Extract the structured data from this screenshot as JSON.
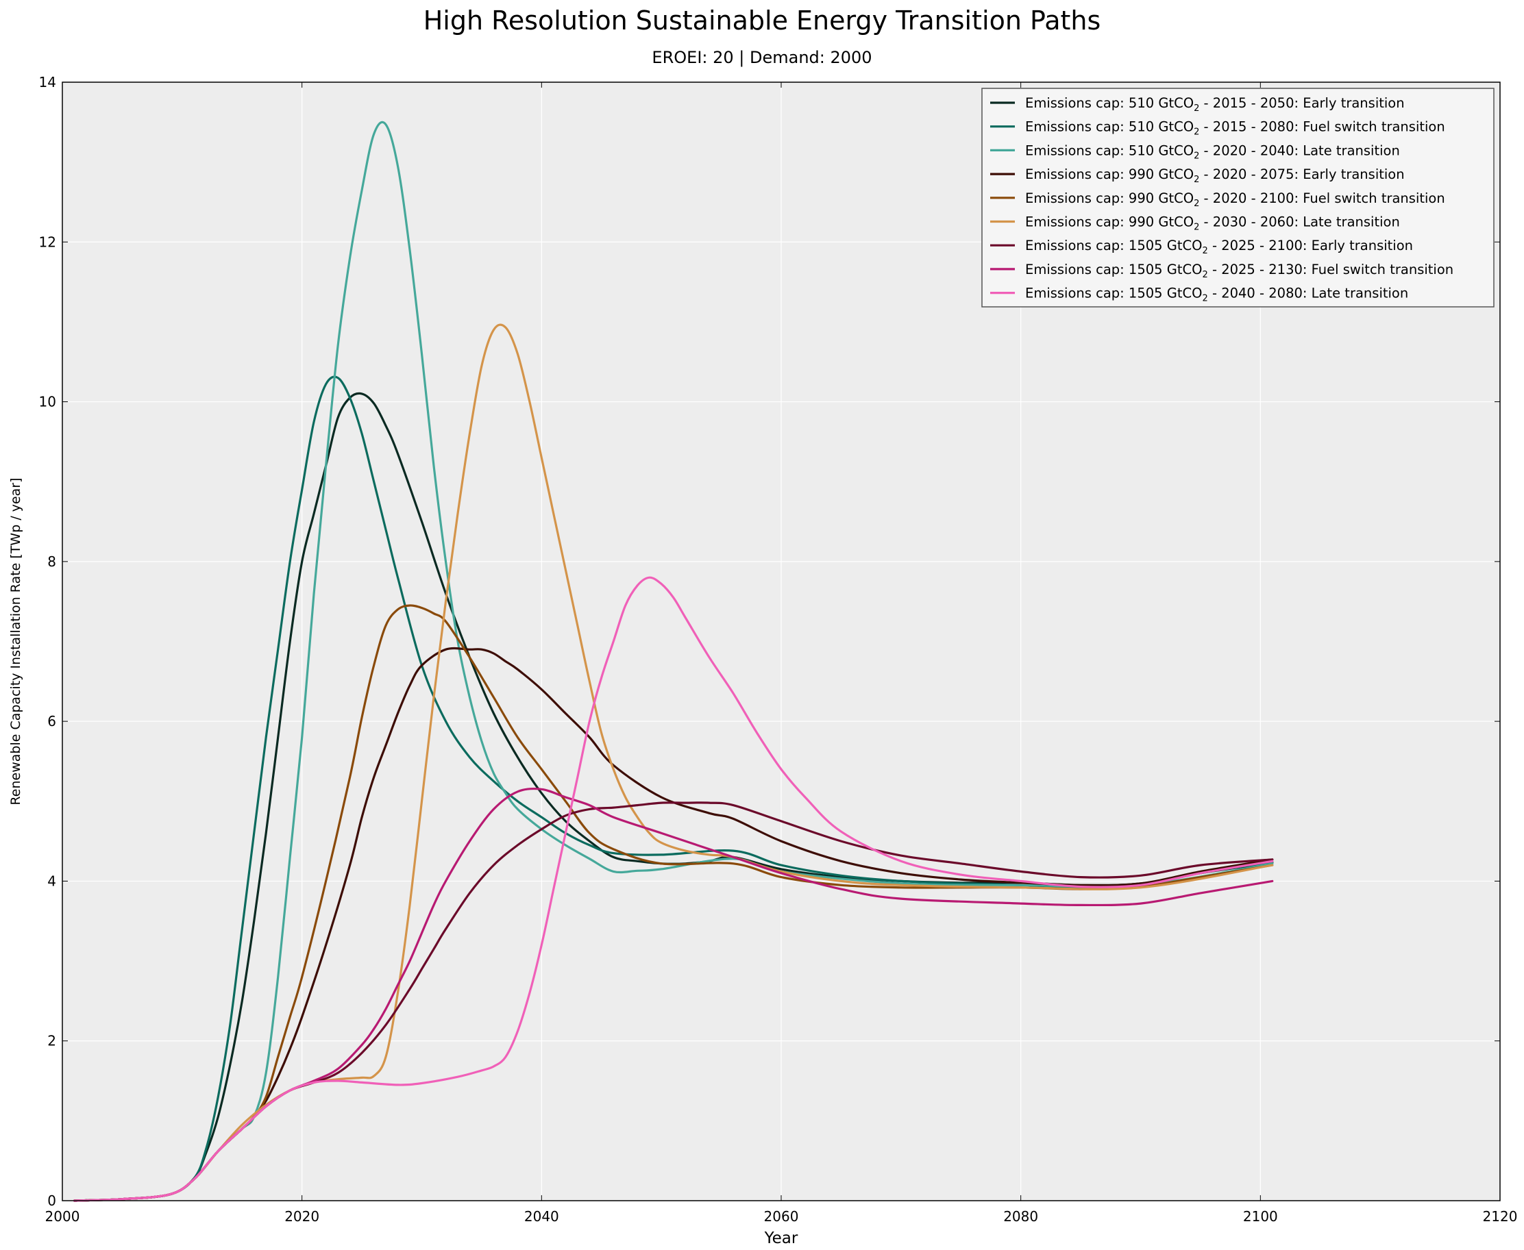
{
  "chart_data": {
    "type": "line",
    "title": "High Resolution Sustainable Energy Transition Paths",
    "subtitle": "EROEI: 20 | Demand: 2000",
    "xlabel": "Year",
    "ylabel": "Renewable Capacity Installation Rate [TWp / year]",
    "xlim": [
      2000,
      2120
    ],
    "ylim": [
      0,
      14
    ],
    "xticks": [
      2000,
      2020,
      2040,
      2060,
      2080,
      2100,
      2120
    ],
    "yticks": [
      0,
      2,
      4,
      6,
      8,
      10,
      12,
      14
    ],
    "grid": true,
    "legend_position": "top-right",
    "series": [
      {
        "name": "Emissions cap: 510 GtCO2 - 2015 - 2050: Early transition",
        "color": "#0a2a22",
        "x": [
          2001,
          2005,
          2009,
          2011,
          2012,
          2013,
          2014,
          2015,
          2016,
          2017,
          2018,
          2019,
          2020,
          2021,
          2022,
          2023,
          2024,
          2025,
          2026,
          2027,
          2028,
          2030,
          2032,
          2034,
          2036,
          2038,
          2040,
          2042,
          2044,
          2046,
          2048,
          2050,
          2052,
          2054,
          2056,
          2060,
          2065,
          2070,
          2075,
          2080,
          2085,
          2090,
          2095,
          2101
        ],
        "y": [
          0,
          0.02,
          0.08,
          0.28,
          0.6,
          1.05,
          1.7,
          2.5,
          3.5,
          4.6,
          5.8,
          7.0,
          8.0,
          8.6,
          9.2,
          9.8,
          10.05,
          10.1,
          9.98,
          9.7,
          9.35,
          8.5,
          7.6,
          6.8,
          6.1,
          5.55,
          5.1,
          4.75,
          4.5,
          4.3,
          4.25,
          4.22,
          4.22,
          4.25,
          4.3,
          4.15,
          4.05,
          4.0,
          3.98,
          3.98,
          3.95,
          3.97,
          4.1,
          4.23
        ]
      },
      {
        "name": "Emissions cap: 510 GtCO2 - 2015 - 2080: Fuel switch transition",
        "color": "#0b6b5e",
        "x": [
          2001,
          2005,
          2009,
          2011,
          2012,
          2013,
          2014,
          2015,
          2016,
          2017,
          2018,
          2019,
          2020,
          2021,
          2022,
          2023,
          2024,
          2025,
          2026,
          2027,
          2028,
          2030,
          2032,
          2034,
          2036,
          2038,
          2040,
          2042,
          2044,
          2046,
          2050,
          2056,
          2060,
          2065,
          2070,
          2075,
          2080,
          2085,
          2090,
          2095,
          2101
        ],
        "y": [
          0,
          0.02,
          0.08,
          0.28,
          0.65,
          1.3,
          2.2,
          3.4,
          4.6,
          5.8,
          6.9,
          8.0,
          8.9,
          9.75,
          10.22,
          10.3,
          10.05,
          9.6,
          9.0,
          8.4,
          7.8,
          6.7,
          6.0,
          5.55,
          5.25,
          5.0,
          4.8,
          4.6,
          4.45,
          4.35,
          4.33,
          4.38,
          4.2,
          4.07,
          4.0,
          3.97,
          3.95,
          3.92,
          3.95,
          4.1,
          4.24
        ]
      },
      {
        "name": "Emissions cap: 510 GtCO2 - 2020 - 2040: Late transition",
        "color": "#45a89a",
        "x": [
          2001,
          2005,
          2009,
          2011,
          2013,
          2015,
          2016,
          2017,
          2018,
          2019,
          2020,
          2021,
          2022,
          2023,
          2024,
          2025,
          2026,
          2027,
          2028,
          2029,
          2030,
          2031,
          2032,
          2033,
          2034,
          2035,
          2036,
          2037,
          2038,
          2040,
          2042,
          2044,
          2046,
          2048,
          2050,
          2056,
          2060,
          2070,
          2080,
          2090,
          2101
        ],
        "y": [
          0,
          0.02,
          0.08,
          0.27,
          0.62,
          0.9,
          1.05,
          1.6,
          2.8,
          4.3,
          5.8,
          7.6,
          9.2,
          10.7,
          11.8,
          12.65,
          13.35,
          13.47,
          12.95,
          11.9,
          10.6,
          9.2,
          8.0,
          7.0,
          6.3,
          5.75,
          5.35,
          5.1,
          4.9,
          4.65,
          4.45,
          4.28,
          4.12,
          4.13,
          4.15,
          4.28,
          4.12,
          3.97,
          3.95,
          3.95,
          4.22
        ]
      },
      {
        "name": "Emissions cap: 990 GtCO2 - 2020 - 2075: Early transition",
        "color": "#3d0d05",
        "x": [
          2001,
          2005,
          2009,
          2011,
          2013,
          2015,
          2016,
          2017,
          2018,
          2019,
          2020,
          2022,
          2024,
          2025,
          2026,
          2027,
          2028,
          2029,
          2030,
          2032,
          2034,
          2035,
          2036,
          2037,
          2038,
          2040,
          2042,
          2044,
          2046,
          2050,
          2054,
          2056,
          2060,
          2065,
          2070,
          2075,
          2080,
          2085,
          2090,
          2095,
          2101
        ],
        "y": [
          0,
          0.02,
          0.08,
          0.27,
          0.62,
          0.9,
          1.05,
          1.25,
          1.55,
          1.9,
          2.3,
          3.2,
          4.2,
          4.8,
          5.3,
          5.7,
          6.1,
          6.45,
          6.7,
          6.9,
          6.9,
          6.9,
          6.85,
          6.75,
          6.65,
          6.4,
          6.1,
          5.8,
          5.45,
          5.05,
          4.85,
          4.78,
          4.5,
          4.25,
          4.1,
          4.02,
          3.98,
          3.95,
          3.97,
          4.12,
          4.27
        ]
      },
      {
        "name": "Emissions cap: 990 GtCO2 - 2020 - 2100: Fuel switch transition",
        "color": "#8a4a0a",
        "x": [
          2001,
          2005,
          2009,
          2011,
          2013,
          2015,
          2016,
          2017,
          2018,
          2019,
          2020,
          2022,
          2024,
          2025,
          2026,
          2027,
          2028,
          2029,
          2030,
          2031,
          2032,
          2034,
          2036,
          2038,
          2040,
          2042,
          2044,
          2046,
          2050,
          2056,
          2060,
          2065,
          2070,
          2075,
          2080,
          2085,
          2090,
          2095,
          2101
        ],
        "y": [
          0,
          0.02,
          0.08,
          0.27,
          0.62,
          0.9,
          1.05,
          1.3,
          1.8,
          2.3,
          2.8,
          4.0,
          5.3,
          6.05,
          6.7,
          7.2,
          7.4,
          7.45,
          7.42,
          7.35,
          7.25,
          6.8,
          6.3,
          5.8,
          5.4,
          5.0,
          4.6,
          4.4,
          4.22,
          4.22,
          4.05,
          3.95,
          3.92,
          3.92,
          3.92,
          3.9,
          3.93,
          4.05,
          4.2
        ]
      },
      {
        "name": "Emissions cap: 990 GtCO2 - 2030 - 2060: Late transition",
        "color": "#d4944a",
        "x": [
          2001,
          2005,
          2009,
          2011,
          2013,
          2015,
          2017,
          2019,
          2021,
          2023,
          2025,
          2026,
          2027,
          2028,
          2029,
          2030,
          2031,
          2032,
          2033,
          2034,
          2035,
          2036,
          2037,
          2038,
          2039,
          2040,
          2041,
          2042,
          2043,
          2044,
          2045,
          2046,
          2047,
          2048,
          2049,
          2050,
          2052,
          2054,
          2056,
          2060,
          2065,
          2070,
          2080,
          2090,
          2101
        ],
        "y": [
          0,
          0.02,
          0.08,
          0.27,
          0.62,
          0.95,
          1.2,
          1.38,
          1.48,
          1.52,
          1.54,
          1.56,
          1.8,
          2.6,
          3.7,
          5.0,
          6.3,
          7.5,
          8.6,
          9.6,
          10.45,
          10.9,
          10.93,
          10.6,
          10.0,
          9.3,
          8.6,
          7.9,
          7.2,
          6.5,
          5.85,
          5.4,
          5.05,
          4.8,
          4.6,
          4.48,
          4.38,
          4.33,
          4.3,
          4.12,
          4.0,
          3.95,
          3.92,
          3.92,
          4.2
        ]
      },
      {
        "name": "Emissions cap: 1505 GtCO2 - 2025 - 2100: Early transition",
        "color": "#6b0a2a",
        "x": [
          2001,
          2005,
          2009,
          2011,
          2013,
          2015,
          2017,
          2019,
          2021,
          2023,
          2025,
          2027,
          2029,
          2030,
          2031,
          2032,
          2034,
          2036,
          2038,
          2040,
          2042,
          2044,
          2046,
          2048,
          2050,
          2052,
          2054,
          2056,
          2060,
          2065,
          2070,
          2075,
          2080,
          2085,
          2090,
          2095,
          2101
        ],
        "y": [
          0,
          0.02,
          0.08,
          0.27,
          0.62,
          0.9,
          1.18,
          1.38,
          1.48,
          1.6,
          1.85,
          2.2,
          2.65,
          2.9,
          3.15,
          3.4,
          3.85,
          4.2,
          4.45,
          4.65,
          4.82,
          4.9,
          4.92,
          4.95,
          4.98,
          4.98,
          4.98,
          4.95,
          4.75,
          4.5,
          4.32,
          4.22,
          4.12,
          4.05,
          4.07,
          4.2,
          4.27
        ]
      },
      {
        "name": "Emissions cap: 1505 GtCO2 - 2025 - 2130: Fuel switch transition",
        "color": "#b81a72",
        "x": [
          2001,
          2005,
          2009,
          2011,
          2013,
          2015,
          2017,
          2019,
          2021,
          2023,
          2025,
          2026,
          2027,
          2028,
          2029,
          2030,
          2031,
          2032,
          2034,
          2036,
          2038,
          2040,
          2042,
          2044,
          2046,
          2050,
          2056,
          2060,
          2065,
          2070,
          2080,
          2085,
          2090,
          2095,
          2101
        ],
        "y": [
          0,
          0.02,
          0.08,
          0.27,
          0.62,
          0.9,
          1.18,
          1.38,
          1.5,
          1.65,
          1.95,
          2.15,
          2.4,
          2.7,
          3.0,
          3.35,
          3.7,
          4.0,
          4.5,
          4.9,
          5.12,
          5.15,
          5.05,
          4.95,
          4.8,
          4.6,
          4.3,
          4.1,
          3.9,
          3.78,
          3.72,
          3.7,
          3.72,
          3.85,
          4.0
        ]
      },
      {
        "name": "Emissions cap: 1505 GtCO2 - 2040 - 2080: Late transition",
        "color": "#f060b8",
        "x": [
          2001,
          2005,
          2009,
          2011,
          2013,
          2015,
          2017,
          2019,
          2021,
          2023,
          2025,
          2028,
          2030,
          2033,
          2035,
          2036,
          2037,
          2038,
          2039,
          2040,
          2041,
          2042,
          2043,
          2044,
          2045,
          2046,
          2047,
          2048,
          2049,
          2050,
          2051,
          2052,
          2054,
          2056,
          2058,
          2060,
          2062,
          2065,
          2070,
          2075,
          2080,
          2085,
          2090,
          2095,
          2101
        ],
        "y": [
          0,
          0.02,
          0.08,
          0.27,
          0.62,
          0.9,
          1.18,
          1.38,
          1.48,
          1.5,
          1.48,
          1.45,
          1.47,
          1.55,
          1.63,
          1.68,
          1.8,
          2.12,
          2.6,
          3.2,
          3.9,
          4.6,
          5.3,
          6.0,
          6.55,
          7.0,
          7.45,
          7.7,
          7.8,
          7.72,
          7.55,
          7.3,
          6.8,
          6.35,
          5.85,
          5.4,
          5.05,
          4.62,
          4.25,
          4.08,
          4.0,
          3.93,
          3.95,
          4.1,
          4.25
        ]
      }
    ]
  },
  "legend": {
    "entries": [
      {
        "prefix": "Emissions cap: 510 GtCO",
        "suffix": " - 2015 - 2050: Early transition"
      },
      {
        "prefix": "Emissions cap: 510 GtCO",
        "suffix": " - 2015 - 2080: Fuel switch transition"
      },
      {
        "prefix": "Emissions cap: 510 GtCO",
        "suffix": " - 2020 - 2040: Late transition"
      },
      {
        "prefix": "Emissions cap: 990 GtCO",
        "suffix": " - 2020 - 2075: Early transition"
      },
      {
        "prefix": "Emissions cap: 990 GtCO",
        "suffix": " - 2020 - 2100: Fuel switch transition"
      },
      {
        "prefix": "Emissions cap: 990 GtCO",
        "suffix": " - 2030 - 2060: Late transition"
      },
      {
        "prefix": "Emissions cap: 1505 GtCO",
        "suffix": " - 2025 - 2100: Early transition"
      },
      {
        "prefix": "Emissions cap: 1505 GtCO",
        "suffix": " - 2025 - 2130: Fuel switch transition"
      },
      {
        "prefix": "Emissions cap: 1505 GtCO",
        "suffix": " - 2040 - 2080: Late transition"
      }
    ],
    "subscript": "2"
  },
  "style": {
    "plot_background": "#ededed",
    "grid_color": "#ffffff",
    "legend_background": "#f5f5f5"
  }
}
